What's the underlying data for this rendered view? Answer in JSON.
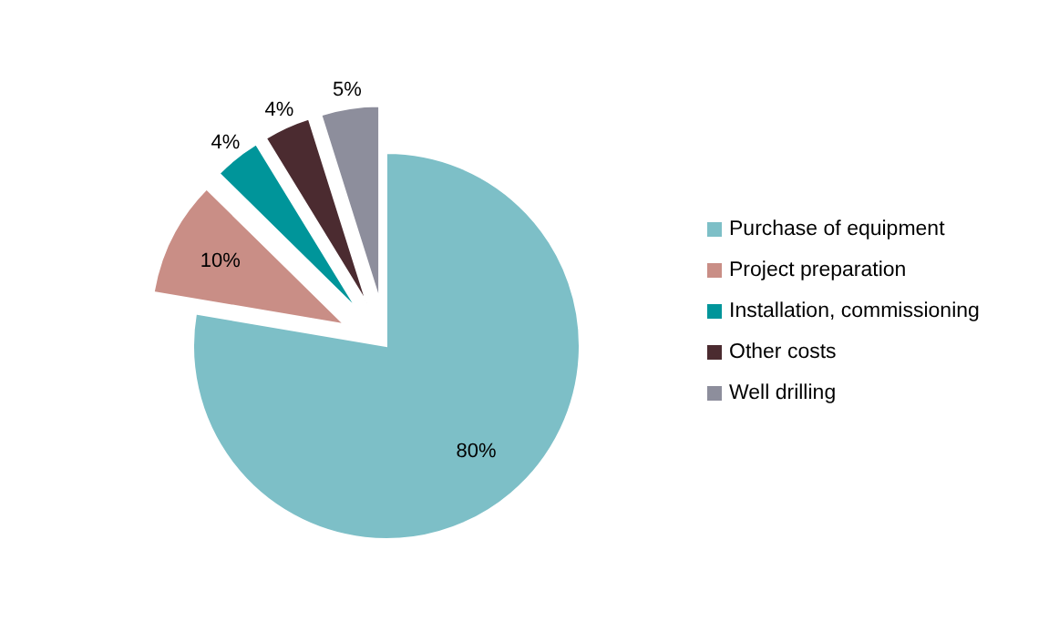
{
  "chart_data": {
    "type": "pie",
    "categories": [
      "Purchase of equipment",
      "Project preparation",
      "Installation, commissioning",
      "Other costs",
      "Well drilling"
    ],
    "values": [
      80,
      10,
      4,
      4,
      5
    ],
    "colors": [
      "#7dbfc7",
      "#c98e86",
      "#00959a",
      "#4b2b30",
      "#8d8e9c"
    ],
    "value_labels": [
      "80%",
      "10%",
      "4%",
      "4%",
      "5%"
    ],
    "legend": "right"
  }
}
